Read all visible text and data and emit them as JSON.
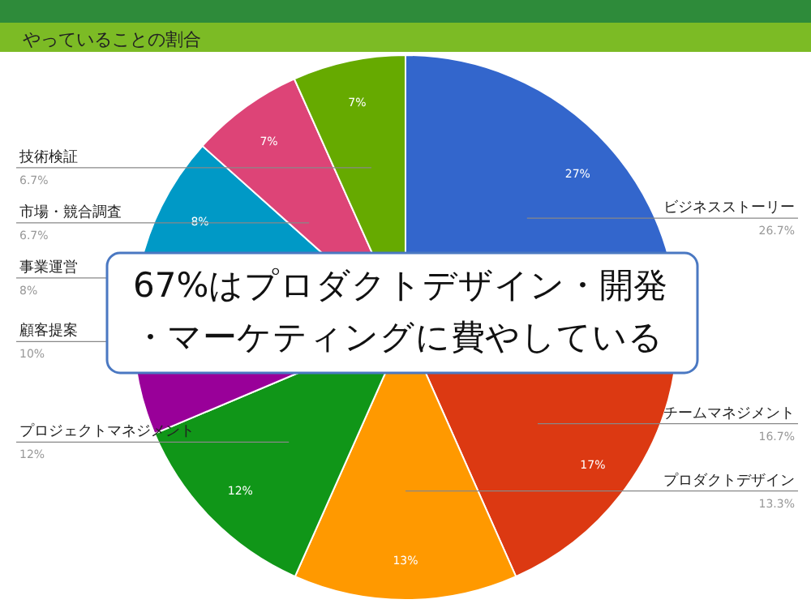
{
  "chart_data": {
    "type": "pie",
    "title": "やっていることの割合",
    "categories": [
      "ビジネスストーリー",
      "チームマネジメント",
      "プロダクトデザイン",
      "プロジェクトマネジメント",
      "顧客提案",
      "事業運営",
      "市場・競合調査",
      "技術検証"
    ],
    "values": [
      26.7,
      16.7,
      13.3,
      12,
      10,
      8,
      6.7,
      6.7
    ],
    "colors": [
      "#3366cc",
      "#dc3912",
      "#ff9900",
      "#109618",
      "#990099",
      "#0099c6",
      "#dd4477",
      "#66aa00"
    ],
    "value_labels": [
      "26.7%",
      "16.7%",
      "13.3%",
      "12%",
      "10%",
      "8%",
      "6.7%",
      "6.7%"
    ],
    "annotations": [
      "67%はプロダクトデザイン・開発・マーケティングに費やしている",
      {
        "text": "27%",
        "x": "ビジネスストーリー"
      },
      {
        "text": "17%",
        "x": "チームマネジメント"
      },
      {
        "text": "13%",
        "x": "プロダクトデザイン"
      },
      {
        "text": "12%",
        "x": "プロジェクトマネジメント"
      },
      {
        "text": "8%",
        "x": "事業運営"
      },
      {
        "text": "7%",
        "x": "市場・競合調査"
      },
      {
        "text": "7%",
        "x": "技術検証"
      }
    ]
  }
}
